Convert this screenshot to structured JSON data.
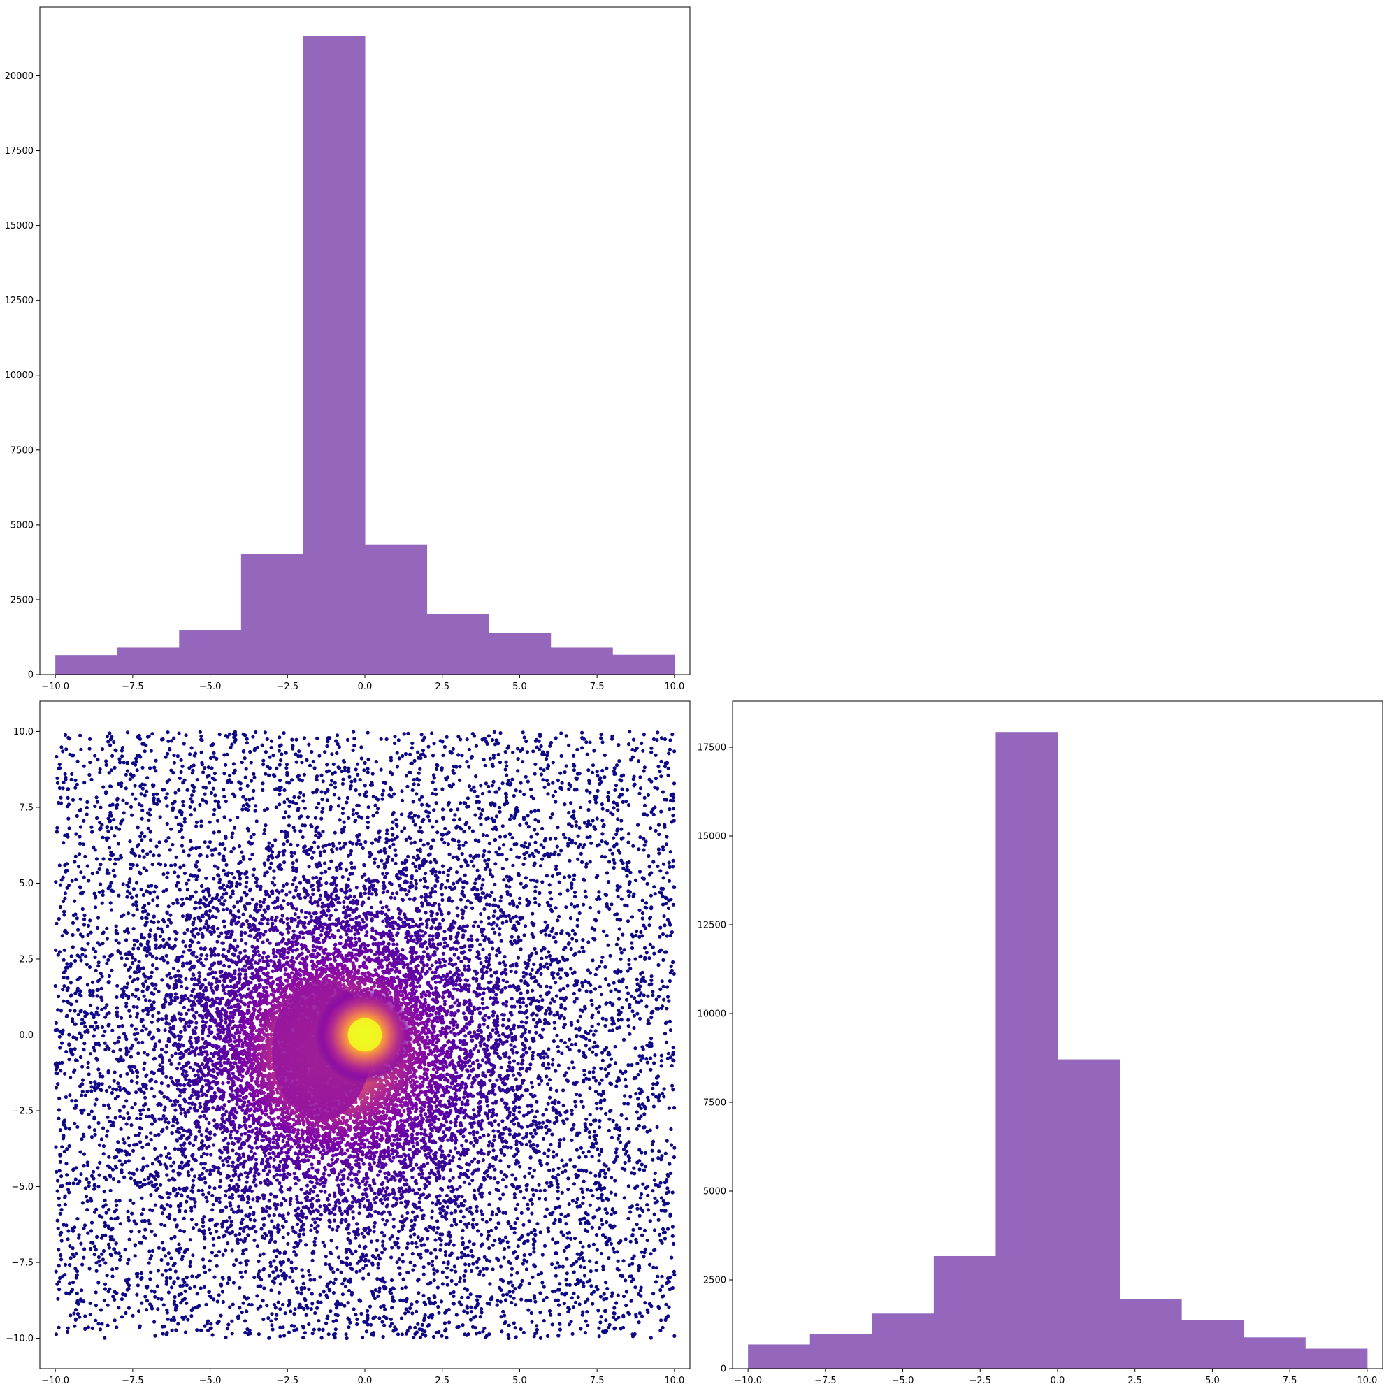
{
  "chart_data": [
    {
      "type": "bar",
      "panel": "top-left",
      "variable": "x",
      "bin_edges": [
        -10,
        -8,
        -6,
        -4,
        -2,
        0,
        2,
        4,
        6,
        8,
        10
      ],
      "values": [
        650,
        900,
        1470,
        4030,
        21330,
        4350,
        2030,
        1400,
        900,
        660
      ],
      "color": "#9467bd",
      "xlim": [
        -10.5,
        10.5
      ],
      "ylim": [
        0,
        22300
      ],
      "xticks": [
        -10.0,
        -7.5,
        -5.0,
        -2.5,
        0.0,
        2.5,
        5.0,
        7.5,
        10.0
      ],
      "xtick_labels": [
        "−10.0",
        "−7.5",
        "−5.0",
        "−2.5",
        "0.0",
        "2.5",
        "5.0",
        "7.5",
        "10.0"
      ],
      "yticks": [
        0,
        2500,
        5000,
        7500,
        10000,
        12500,
        15000,
        17500,
        20000
      ],
      "ytick_labels": [
        "0",
        "2500",
        "5000",
        "7500",
        "10000",
        "12500",
        "15000",
        "17500",
        "20000"
      ],
      "title": "",
      "xlabel": "",
      "ylabel": ""
    },
    {
      "type": "scatter",
      "panel": "bottom-left",
      "description_of_colormap": "plasma",
      "n_points_approx": 40000,
      "x_range": [
        -10,
        10
      ],
      "y_range": [
        -10,
        10
      ],
      "density_peak": [
        0.0,
        0.0
      ],
      "point_color_low": "#1b0c8a",
      "point_color_mid": "#9c179e",
      "point_color_high": "#f0f921",
      "xlim": [
        -10.5,
        10.5
      ],
      "ylim": [
        -11,
        11
      ],
      "xticks": [
        -10.0,
        -7.5,
        -5.0,
        -2.5,
        0.0,
        2.5,
        5.0,
        7.5,
        10.0
      ],
      "xtick_labels": [
        "−10.0",
        "−7.5",
        "−5.0",
        "−2.5",
        "0.0",
        "2.5",
        "5.0",
        "7.5",
        "10.0"
      ],
      "yticks": [
        -10.0,
        -7.5,
        -5.0,
        -2.5,
        0.0,
        2.5,
        5.0,
        7.5,
        10.0
      ],
      "ytick_labels": [
        "−10.0",
        "−7.5",
        "−5.0",
        "−2.5",
        "0.0",
        "2.5",
        "5.0",
        "7.5",
        "10.0"
      ],
      "title": "",
      "xlabel": "",
      "ylabel": ""
    },
    {
      "type": "bar",
      "panel": "bottom-right",
      "variable": "y",
      "bin_edges": [
        -10,
        -8,
        -6,
        -4,
        -2,
        0,
        2,
        4,
        6,
        8,
        10
      ],
      "values": [
        680,
        970,
        1550,
        3170,
        17930,
        8710,
        1960,
        1360,
        880,
        560
      ],
      "color": "#9467bd",
      "xlim": [
        -10.5,
        10.5
      ],
      "ylim": [
        0,
        18800
      ],
      "xticks": [
        -10.0,
        -7.5,
        -5.0,
        -2.5,
        0.0,
        2.5,
        5.0,
        7.5,
        10.0
      ],
      "xtick_labels": [
        "−10.0",
        "−7.5",
        "−5.0",
        "−2.5",
        "0.0",
        "2.5",
        "5.0",
        "7.5",
        "10.0"
      ],
      "yticks": [
        0,
        2500,
        5000,
        7500,
        10000,
        12500,
        15000,
        17500
      ],
      "ytick_labels": [
        "0",
        "2500",
        "5000",
        "7500",
        "10000",
        "12500",
        "15000",
        "17500"
      ],
      "title": "",
      "xlabel": "",
      "ylabel": ""
    }
  ]
}
